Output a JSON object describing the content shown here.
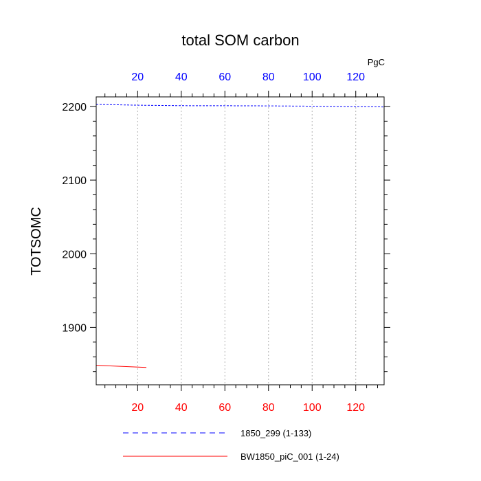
{
  "chart_data": {
    "type": "line",
    "title": "total SOM carbon",
    "ylabel": "TOTSOMC",
    "units_label": "PgC",
    "xlim": [
      1,
      133
    ],
    "ylim": [
      1822,
      2213
    ],
    "x_ticks": [
      20,
      40,
      60,
      80,
      100,
      120
    ],
    "y_ticks": [
      1900,
      2000,
      2100,
      2200
    ],
    "top_axis_color": "#0000ff",
    "bottom_axis_color": "#ff0000",
    "grid": "vertical dotted",
    "series": [
      {
        "name": "1850_299 (1-133)",
        "color": "#0000ff",
        "dash": "dashed",
        "axis": "top",
        "x": [
          1,
          20,
          40,
          60,
          80,
          100,
          120,
          133
        ],
        "y": [
          2202.8,
          2201.7,
          2201.1,
          2201.0,
          2200.8,
          2200.4,
          2199.7,
          2199.4
        ]
      },
      {
        "name": "BW1850_piC_001 (1-24)",
        "color": "#ff0000",
        "dash": "solid",
        "axis": "bottom",
        "x": [
          1,
          24
        ],
        "y": [
          1848.5,
          1845.5
        ]
      }
    ],
    "legend": "bottom"
  }
}
